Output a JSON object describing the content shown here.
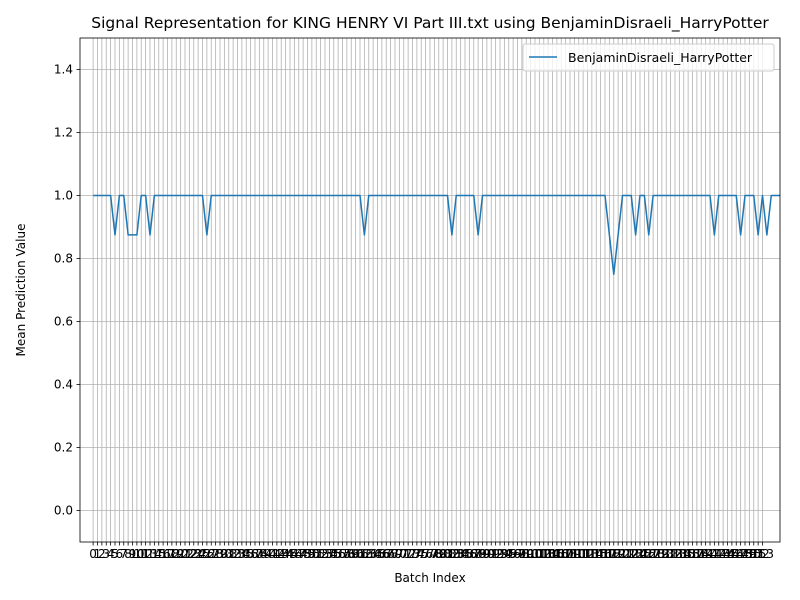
{
  "chart_data": {
    "type": "line",
    "title": "Signal Representation for KING HENRY VI Part III.txt using BenjaminDisraeli_HarryPotter",
    "xlabel": "Batch Index",
    "ylabel": "Mean Prediction Value",
    "xlim": [
      -3,
      157
    ],
    "ylim": [
      -0.1,
      1.5
    ],
    "yticks": [
      0.0,
      0.2,
      0.4,
      0.6,
      0.8,
      1.0,
      1.2,
      1.4
    ],
    "ytick_labels": [
      "0.0",
      "0.2",
      "0.4",
      "0.6",
      "0.8",
      "1.0",
      "1.2",
      "1.4"
    ],
    "xtick_step": 1,
    "xtick_count": 154,
    "grid": true,
    "legend_position": "top-right",
    "colors": {
      "series": "#1f77b4",
      "grid": "#b0b0b0"
    },
    "series": [
      {
        "name": "BenjaminDisraeli_HarryPotter",
        "x_start": 0,
        "values": [
          1,
          1,
          1,
          1,
          1,
          0.875,
          1,
          1,
          0.875,
          0.875,
          0.875,
          1,
          1,
          0.875,
          1,
          1,
          1,
          1,
          1,
          1,
          1,
          1,
          1,
          1,
          1,
          1,
          0.875,
          1,
          1,
          1,
          1,
          1,
          1,
          1,
          1,
          1,
          1,
          1,
          1,
          1,
          1,
          1,
          1,
          1,
          1,
          1,
          1,
          1,
          1,
          1,
          1,
          1,
          1,
          1,
          1,
          1,
          1,
          1,
          1,
          1,
          1,
          1,
          0.875,
          1,
          1,
          1,
          1,
          1,
          1,
          1,
          1,
          1,
          1,
          1,
          1,
          1,
          1,
          1,
          1,
          1,
          1,
          1,
          0.875,
          1,
          1,
          1,
          1,
          1,
          0.875,
          1,
          1,
          1,
          1,
          1,
          1,
          1,
          1,
          1,
          1,
          1,
          1,
          1,
          1,
          1,
          1,
          1,
          1,
          1,
          1,
          1,
          1,
          1,
          1,
          1,
          1,
          1,
          1,
          1,
          0.875,
          0.75,
          0.875,
          1,
          1,
          1,
          0.875,
          1,
          1,
          0.875,
          1,
          1,
          1,
          1,
          1,
          1,
          1,
          1,
          1,
          1,
          1,
          1,
          1,
          1,
          0.875,
          1,
          1,
          1,
          1,
          1,
          0.875,
          1,
          1,
          1,
          0.875,
          1,
          0.875,
          1,
          1,
          1
        ]
      }
    ]
  }
}
